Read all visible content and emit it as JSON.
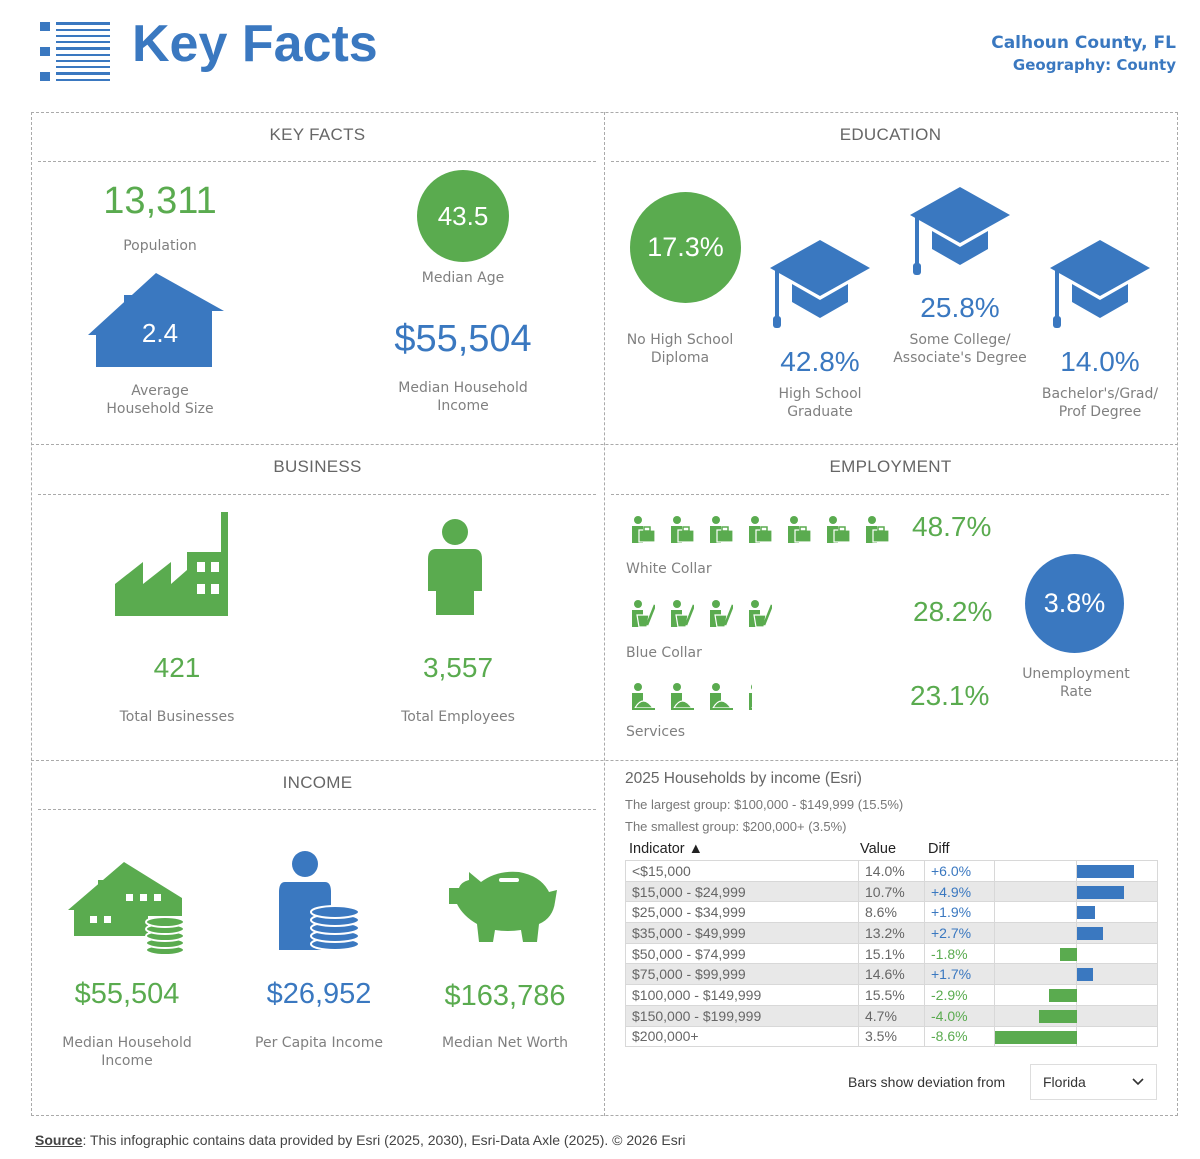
{
  "header": {
    "title": "Key Facts",
    "location": "Calhoun County, FL",
    "geography": "Geography: County"
  },
  "colors": {
    "green": "#5aab4f",
    "blue": "#3a78c0"
  },
  "key_facts": {
    "title": "KEY FACTS",
    "population": "13,311",
    "population_label": "Population",
    "median_age": "43.5",
    "median_age_label": "Median Age",
    "household_size": "2.4",
    "household_size_label_1": "Average",
    "household_size_label_2": "Household Size",
    "median_income": "$55,504",
    "median_income_label_1": "Median Household",
    "median_income_label_2": "Income"
  },
  "education": {
    "title": "EDUCATION",
    "no_hs": "17.3%",
    "no_hs_label_1": "No High School",
    "no_hs_label_2": "Diploma",
    "hs": "42.8%",
    "hs_label_1": "High School",
    "hs_label_2": "Graduate",
    "college": "25.8%",
    "college_label_1": "Some College/",
    "college_label_2": "Associate's Degree",
    "bachelor": "14.0%",
    "bachelor_label_1": "Bachelor's/Grad/",
    "bachelor_label_2": "Prof Degree"
  },
  "business": {
    "title": "BUSINESS",
    "businesses": "421",
    "businesses_label": "Total Businesses",
    "employees": "3,557",
    "employees_label": "Total Employees"
  },
  "employment": {
    "title": "EMPLOYMENT",
    "white_collar": "48.7%",
    "white_collar_label": "White Collar",
    "blue_collar": "28.2%",
    "blue_collar_label": "Blue Collar",
    "services": "23.1%",
    "services_label": "Services",
    "unemployment": "3.8%",
    "unemployment_label_1": "Unemployment",
    "unemployment_label_2": "Rate",
    "icons": {
      "white_collar": "office-worker-icon",
      "blue_collar": "laborer-icon",
      "services": "service-worker-icon"
    }
  },
  "income": {
    "title": "INCOME",
    "median_hh": "$55,504",
    "median_hh_label_1": "Median Household",
    "median_hh_label_2": "Income",
    "per_capita": "$26,952",
    "per_capita_label": "Per Capita Income",
    "net_worth": "$163,786",
    "net_worth_label": "Median Net Worth"
  },
  "households": {
    "title": "2025 Households by income (Esri)",
    "largest": "The largest group: $100,000 - $149,999 (15.5%)",
    "smallest": "The smallest group: $200,000+ (3.5%)",
    "col_indicator": "Indicator ▲",
    "col_value": "Value",
    "col_diff": "Diff",
    "rows": [
      {
        "indicator": "<$15,000",
        "value": "14.0%",
        "diff": "+6.0%",
        "d": 6.0
      },
      {
        "indicator": "$15,000 - $24,999",
        "value": "10.7%",
        "diff": "+4.9%",
        "d": 4.9
      },
      {
        "indicator": "$25,000 - $34,999",
        "value": "8.6%",
        "diff": "+1.9%",
        "d": 1.9
      },
      {
        "indicator": "$35,000 - $49,999",
        "value": "13.2%",
        "diff": "+2.7%",
        "d": 2.7
      },
      {
        "indicator": "$50,000 - $74,999",
        "value": "15.1%",
        "diff": "-1.8%",
        "d": -1.8
      },
      {
        "indicator": "$75,000 - $99,999",
        "value": "14.6%",
        "diff": "+1.7%",
        "d": 1.7
      },
      {
        "indicator": "$100,000 - $149,999",
        "value": "15.5%",
        "diff": "-2.9%",
        "d": -2.9
      },
      {
        "indicator": "$150,000 - $199,999",
        "value": "4.7%",
        "diff": "-4.0%",
        "d": -4.0
      },
      {
        "indicator": "$200,000+",
        "value": "3.5%",
        "diff": "-8.6%",
        "d": -8.6
      }
    ],
    "deviation_label": "Bars show deviation from",
    "deviation_select": "Florida"
  },
  "footer": {
    "source_label": "Source",
    "source_text": ": This infographic contains data provided by Esri (2025, 2030), Esri-Data Axle (2025). © 2026 Esri"
  }
}
